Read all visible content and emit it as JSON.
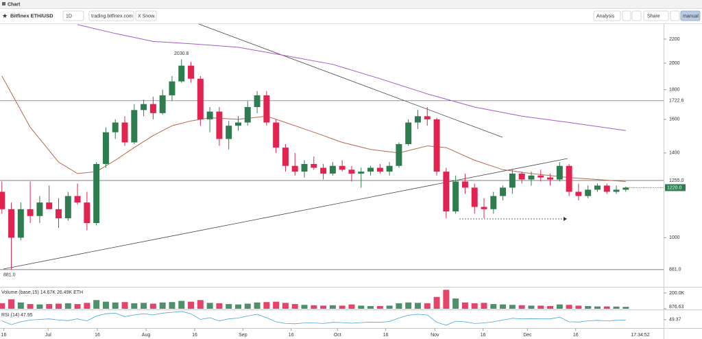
{
  "header": {
    "title": "Chart"
  },
  "toolbar": {
    "symbol": "Bitfinex ETH/USD",
    "interval": "1D",
    "link": "trading.bitfinex.com",
    "snow": "X Snow.",
    "analysis": "Analysis",
    "share": "Share",
    "mode": "manual"
  },
  "chart_data": {
    "type": "candlestick",
    "log_scale": true,
    "up_color": "#2e7d4f",
    "down_color": "#e0234f",
    "xlim": [
      -0.2,
      70
    ],
    "xticks": [
      {
        "value": 0.2,
        "label": "16"
      },
      {
        "value": 4.9,
        "label": "Jul"
      },
      {
        "value": 10.1,
        "label": "16"
      },
      {
        "value": 15.25,
        "label": "Aug"
      },
      {
        "value": 20.4,
        "label": "16"
      },
      {
        "value": 25.5,
        "label": "Sep"
      },
      {
        "value": 30.6,
        "label": "16"
      },
      {
        "value": 35.5,
        "label": "Oct"
      },
      {
        "value": 40.6,
        "label": "16"
      },
      {
        "value": 45.8,
        "label": "Nov"
      },
      {
        "value": 50.9,
        "label": "16"
      },
      {
        "value": 55.6,
        "label": "Dec"
      },
      {
        "value": 60.7,
        "label": "16"
      }
    ],
    "ylim": [
      825,
      2336
    ],
    "yticks": [
      1000,
      1400,
      1600,
      1800,
      2000,
      2200
    ],
    "levels": [
      {
        "value": 1722.6,
        "label": "1722.6"
      },
      {
        "value": 1255,
        "label": "1255.0"
      },
      {
        "value": 881,
        "label": "881.0"
      }
    ],
    "last_price": {
      "value": 1220,
      "label": "1220.0"
    },
    "annotations": [
      {
        "value": 2030.8,
        "label": "2030.8"
      },
      {
        "value": 881,
        "label": "881.0"
      }
    ],
    "open": [
      1200,
      1120,
      1000,
      1120,
      1090,
      1150,
      1120,
      1080,
      1180,
      1150,
      1060,
      1340,
      1520,
      1580,
      1460,
      1660,
      1700,
      1640,
      1760,
      1860,
      1980,
      1880,
      1600,
      1650,
      1480,
      1560,
      1580,
      1680,
      1760,
      1580,
      1430,
      1330,
      1300,
      1340,
      1320,
      1290,
      1330,
      1310,
      1290,
      1300,
      1320,
      1300,
      1330,
      1450,
      1580,
      1620,
      1600,
      1300,
      1110,
      1250,
      1220,
      1130,
      1120,
      1180,
      1220,
      1290,
      1260,
      1280,
      1270,
      1260,
      1330,
      1200,
      1180,
      1210,
      1230,
      1200,
      1210
    ],
    "high": [
      1250,
      1150,
      1150,
      1250,
      1180,
      1230,
      1170,
      1200,
      1240,
      1200,
      1350,
      1550,
      1600,
      1620,
      1700,
      1730,
      1750,
      1800,
      1900,
      2030.8,
      2010,
      1900,
      1680,
      1680,
      1590,
      1620,
      1720,
      1790,
      1790,
      1600,
      1450,
      1400,
      1360,
      1380,
      1340,
      1350,
      1360,
      1330,
      1320,
      1330,
      1340,
      1350,
      1460,
      1600,
      1660,
      1680,
      1610,
      1320,
      1280,
      1290,
      1240,
      1170,
      1200,
      1230,
      1310,
      1300,
      1300,
      1310,
      1290,
      1350,
      1340,
      1240,
      1230,
      1240,
      1240,
      1230,
      1225
    ],
    "low": [
      1100,
      881,
      990,
      1060,
      1060,
      1120,
      1040,
      1070,
      1140,
      1030,
      1050,
      1320,
      1480,
      1440,
      1450,
      1620,
      1600,
      1630,
      1720,
      1850,
      1850,
      1560,
      1520,
      1440,
      1420,
      1530,
      1560,
      1640,
      1560,
      1400,
      1300,
      1280,
      1270,
      1310,
      1260,
      1280,
      1300,
      1250,
      1220,
      1280,
      1290,
      1280,
      1320,
      1440,
      1540,
      1560,
      1280,
      1080,
      1100,
      1190,
      1100,
      1080,
      1100,
      1160,
      1190,
      1240,
      1230,
      1250,
      1230,
      1250,
      1180,
      1160,
      1170,
      1200,
      1190,
      1190,
      1200
    ],
    "close": [
      1120,
      1000,
      1120,
      1090,
      1150,
      1120,
      1080,
      1180,
      1150,
      1060,
      1340,
      1520,
      1580,
      1460,
      1660,
      1700,
      1640,
      1760,
      1860,
      1980,
      1880,
      1600,
      1650,
      1480,
      1560,
      1580,
      1680,
      1760,
      1580,
      1430,
      1330,
      1300,
      1340,
      1320,
      1290,
      1330,
      1310,
      1290,
      1300,
      1320,
      1300,
      1330,
      1450,
      1580,
      1620,
      1600,
      1300,
      1110,
      1250,
      1220,
      1130,
      1120,
      1180,
      1220,
      1290,
      1260,
      1280,
      1270,
      1260,
      1330,
      1200,
      1180,
      1210,
      1230,
      1200,
      1210,
      1220
    ],
    "overlays": [
      {
        "color": "#b5684a",
        "x": [
          0,
          3,
          6,
          8,
          10,
          12,
          14,
          16,
          18,
          20,
          22,
          25,
          28,
          30,
          33,
          36,
          39,
          42,
          45,
          47,
          50,
          53,
          56,
          60,
          66
        ],
        "values": [
          1900,
          1550,
          1350,
          1290,
          1300,
          1360,
          1430,
          1500,
          1560,
          1590,
          1610,
          1600,
          1620,
          1580,
          1520,
          1460,
          1420,
          1400,
          1440,
          1430,
          1360,
          1310,
          1290,
          1270,
          1250
        ]
      },
      {
        "color": "#a35bc7",
        "x": [
          8,
          12,
          16,
          20,
          25,
          30,
          35,
          40,
          45,
          50,
          55,
          60,
          66
        ],
        "values": [
          2330,
          2250,
          2180,
          2160,
          2130,
          2060,
          1990,
          1880,
          1770,
          1680,
          1620,
          1580,
          1530
        ]
      }
    ],
    "volume": {
      "label": "Volume (base,15) 14.67K 26.49K ETH",
      "ylim": [
        0,
        260
      ],
      "yticks": [
        {
          "value": 200,
          "label": "200.0K"
        },
        {
          "value": 0.87663,
          "label": "876.63"
        }
      ],
      "values": [
        70,
        120,
        80,
        60,
        55,
        60,
        65,
        70,
        60,
        75,
        110,
        90,
        80,
        85,
        70,
        75,
        65,
        80,
        85,
        100,
        90,
        110,
        75,
        70,
        60,
        55,
        65,
        80,
        85,
        90,
        75,
        60,
        50,
        45,
        40,
        45,
        40,
        55,
        40,
        35,
        35,
        40,
        70,
        80,
        75,
        70,
        150,
        240,
        130,
        80,
        70,
        75,
        60,
        55,
        50,
        45,
        40,
        40,
        35,
        55,
        50,
        40,
        35,
        30,
        30,
        28,
        25
      ]
    },
    "rsi": {
      "label": "RSI (14) 47.95",
      "color": "#4aa3d8",
      "ylim": [
        25,
        80
      ],
      "yticks": [
        {
          "value": 49.37,
          "label": "49.37"
        }
      ],
      "values": [
        45,
        32,
        42,
        48,
        50,
        52,
        48,
        46,
        52,
        45,
        62,
        70,
        72,
        60,
        66,
        70,
        66,
        72,
        75,
        78,
        70,
        50,
        56,
        45,
        52,
        55,
        62,
        68,
        56,
        42,
        36,
        35,
        38,
        38,
        36,
        40,
        39,
        37,
        39,
        41,
        40,
        43,
        55,
        65,
        68,
        66,
        40,
        30,
        44,
        42,
        36,
        38,
        42,
        48,
        54,
        52,
        53,
        52,
        52,
        58,
        42,
        41,
        45,
        47,
        45,
        47,
        48
      ]
    },
    "time": "17:34:52"
  }
}
